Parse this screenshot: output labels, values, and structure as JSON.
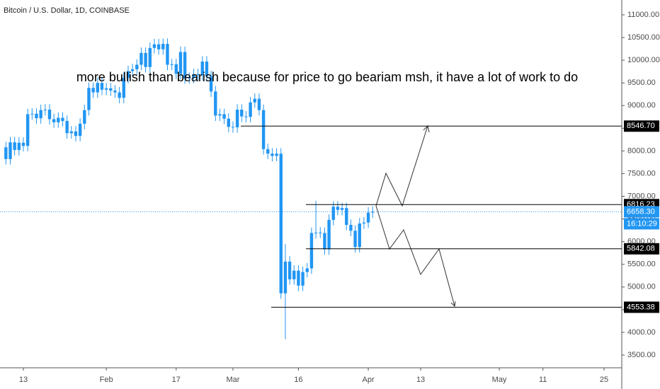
{
  "chart_data": {
    "type": "candlestick",
    "title": "Bitcoin / U.S. Dollar, 1D, COINBASE",
    "annotation": "more bullish than bearish because for price to go beariam msh, it have a lot of work to do",
    "color": "#2196f3",
    "x": [
      9,
      10,
      11,
      12,
      13,
      14,
      15,
      16,
      17,
      18,
      19,
      20,
      21,
      22,
      23,
      24,
      25,
      26,
      27,
      28,
      29,
      30,
      31,
      32,
      33,
      34,
      35,
      36,
      37,
      38,
      39,
      40,
      41,
      42,
      43,
      44,
      45,
      46,
      47,
      48,
      49,
      50,
      51,
      52,
      53,
      54,
      55,
      56,
      57,
      58,
      59,
      60,
      61,
      62,
      63,
      64,
      65,
      66,
      67,
      68,
      69,
      70,
      71,
      72,
      73,
      74,
      75,
      76,
      77,
      78,
      79,
      80,
      81,
      82,
      83,
      84,
      85,
      86,
      87,
      88,
      89,
      90,
      91,
      92,
      93
    ],
    "open": [
      8080,
      7820,
      8190,
      8020,
      8180,
      8110,
      8810,
      8820,
      8720,
      8900,
      8910,
      8700,
      8630,
      8730,
      8660,
      8390,
      8430,
      8330,
      8600,
      8900,
      9390,
      9290,
      9500,
      9350,
      9380,
      9330,
      9290,
      9170,
      9610,
      9760,
      9800,
      9900,
      10160,
      9850,
      10270,
      10350,
      10240,
      10360,
      9900,
      9910,
      9700,
      10180,
      9600,
      9610,
      9690,
      9670,
      9970,
      9650,
      9310,
      8780,
      8810,
      8710,
      8530,
      8520,
      8910,
      8760,
      8750,
      9070,
      9150,
      8900,
      8040,
      7940,
      7890,
      7940,
      4860,
      5560,
      5170,
      5360,
      5030,
      5330,
      5410,
      6190,
      6200,
      6190,
      5830,
      6480,
      6770,
      6700,
      6740,
      6370,
      6240,
      5880,
      6400,
      6420,
      6640
    ],
    "high": [
      8200,
      8310,
      8310,
      8300,
      8300,
      8930,
      8940,
      8940,
      9020,
      9030,
      9030,
      8820,
      8850,
      8850,
      8780,
      8550,
      8550,
      8720,
      9020,
      9510,
      9510,
      9620,
      9620,
      9500,
      9500,
      9450,
      9410,
      9730,
      9880,
      9920,
      10020,
      10280,
      10280,
      10390,
      10470,
      10470,
      10480,
      10480,
      10030,
      10030,
      10300,
      10300,
      9730,
      9810,
      9810,
      10090,
      10090,
      9770,
      9430,
      8930,
      8930,
      8830,
      8650,
      9030,
      9030,
      8880,
      9190,
      9270,
      9270,
      9020,
      8160,
      8060,
      8060,
      8060,
      5950,
      5680,
      5480,
      5480,
      5450,
      5530,
      6310,
      6900,
      6320,
      6310,
      6600,
      6890,
      6890,
      6860,
      6860,
      6490,
      6360,
      6520,
      6540,
      6760,
      6780
    ],
    "low": [
      7700,
      7700,
      7900,
      7900,
      7990,
      7990,
      8690,
      8600,
      8600,
      8780,
      8580,
      8510,
      8510,
      8540,
      8270,
      8270,
      8210,
      8210,
      8480,
      8780,
      9170,
      9170,
      9230,
      9230,
      9210,
      9170,
      9050,
      9050,
      9490,
      9640,
      9680,
      9780,
      9730,
      9730,
      10150,
      10120,
      10120,
      9780,
      9780,
      9580,
      9580,
      9480,
      9480,
      9490,
      9550,
      9550,
      9530,
      9190,
      8660,
      8660,
      8590,
      8410,
      8400,
      8400,
      8640,
      8630,
      8630,
      8950,
      8780,
      7920,
      7820,
      7770,
      7770,
      4740,
      3850,
      5050,
      5050,
      4910,
      4910,
      5210,
      5290,
      6070,
      6080,
      5710,
      5710,
      6360,
      6580,
      6580,
      6250,
      6120,
      5760,
      5760,
      6280,
      6300,
      6520
    ],
    "close": [
      7820,
      8190,
      8020,
      8180,
      8110,
      8810,
      8820,
      8720,
      8900,
      8910,
      8700,
      8630,
      8730,
      8660,
      8390,
      8430,
      8330,
      8600,
      8900,
      9390,
      9290,
      9500,
      9350,
      9380,
      9330,
      9290,
      9170,
      9610,
      9760,
      9800,
      9900,
      10160,
      9850,
      10270,
      10350,
      10240,
      10360,
      9900,
      9910,
      9700,
      10180,
      9600,
      9610,
      9690,
      9670,
      9970,
      9650,
      9310,
      8780,
      8810,
      8710,
      8530,
      8520,
      8910,
      8760,
      8750,
      9070,
      9150,
      8900,
      8040,
      7940,
      7890,
      7940,
      4860,
      5560,
      5170,
      5360,
      5030,
      5330,
      5410,
      6190,
      6200,
      6190,
      5830,
      6480,
      6770,
      6700,
      6740,
      6370,
      6240,
      5880,
      6400,
      6420,
      6640,
      6658.3
    ],
    "xlim": [
      7.65,
      150.05
    ],
    "xticks": [
      {
        "value": 13,
        "label": "13"
      },
      {
        "value": 32,
        "label": "Feb"
      },
      {
        "value": 48,
        "label": "17"
      },
      {
        "value": 61,
        "label": "Mar"
      },
      {
        "value": 76,
        "label": "16"
      },
      {
        "value": 92,
        "label": "Apr"
      },
      {
        "value": 104,
        "label": "13"
      },
      {
        "value": 122,
        "label": "May"
      },
      {
        "value": 132,
        "label": "11"
      },
      {
        "value": 146,
        "label": "25"
      }
    ],
    "ylim": [
      3219,
      11327
    ],
    "yticks": [
      {
        "value": 3500,
        "label": "3500.00"
      },
      {
        "value": 4000,
        "label": "4000.00"
      },
      {
        "value": 4500,
        "label": "4500.00"
      },
      {
        "value": 5000,
        "label": "5000.00"
      },
      {
        "value": 5500,
        "label": "5500.00"
      },
      {
        "value": 6000,
        "label": "6000.00"
      },
      {
        "value": 6500,
        "label": "6500.00"
      },
      {
        "value": 7000,
        "label": "7000.00"
      },
      {
        "value": 7500,
        "label": "7500.00"
      },
      {
        "value": 8000,
        "label": "8000.00"
      },
      {
        "value": 8500,
        "label": "8500.00"
      },
      {
        "value": 9000,
        "label": "9000.00"
      },
      {
        "value": 9500,
        "label": "9500.00"
      },
      {
        "value": 10000,
        "label": "10000.00"
      },
      {
        "value": 10500,
        "label": "10500.00"
      },
      {
        "value": 11000,
        "label": "11000.00"
      }
    ],
    "levels": [
      {
        "value": 8546.7,
        "label": "8546.70"
      },
      {
        "value": 6816.23,
        "label": "6816.23"
      },
      {
        "value": 5842.08,
        "label": "5842.08"
      },
      {
        "value": 4553.38,
        "label": "4553.38"
      }
    ],
    "current_price": {
      "value": 6658.3,
      "label": "6658.30"
    },
    "countdown": "16:10:29"
  }
}
